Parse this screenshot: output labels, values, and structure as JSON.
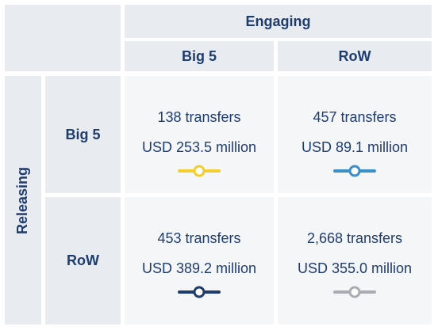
{
  "header": {
    "engaging": "Engaging",
    "releasing": "Releasing"
  },
  "columns": [
    "Big 5",
    "RoW"
  ],
  "rows": [
    "Big 5",
    "RoW"
  ],
  "cells": [
    {
      "transfers": "138 transfers",
      "amount": "USD 253.5 million",
      "marker_color": "#f2cf2f"
    },
    {
      "transfers": "457 transfers",
      "amount": "USD 89.1 million",
      "marker_color": "#3a8ec9"
    },
    {
      "transfers": "453 transfers",
      "amount": "USD 389.2 million",
      "marker_color": "#1f3c6e"
    },
    {
      "transfers": "2,668 transfers",
      "amount": "USD 355.0 million",
      "marker_color": "#a9adb3"
    }
  ]
}
